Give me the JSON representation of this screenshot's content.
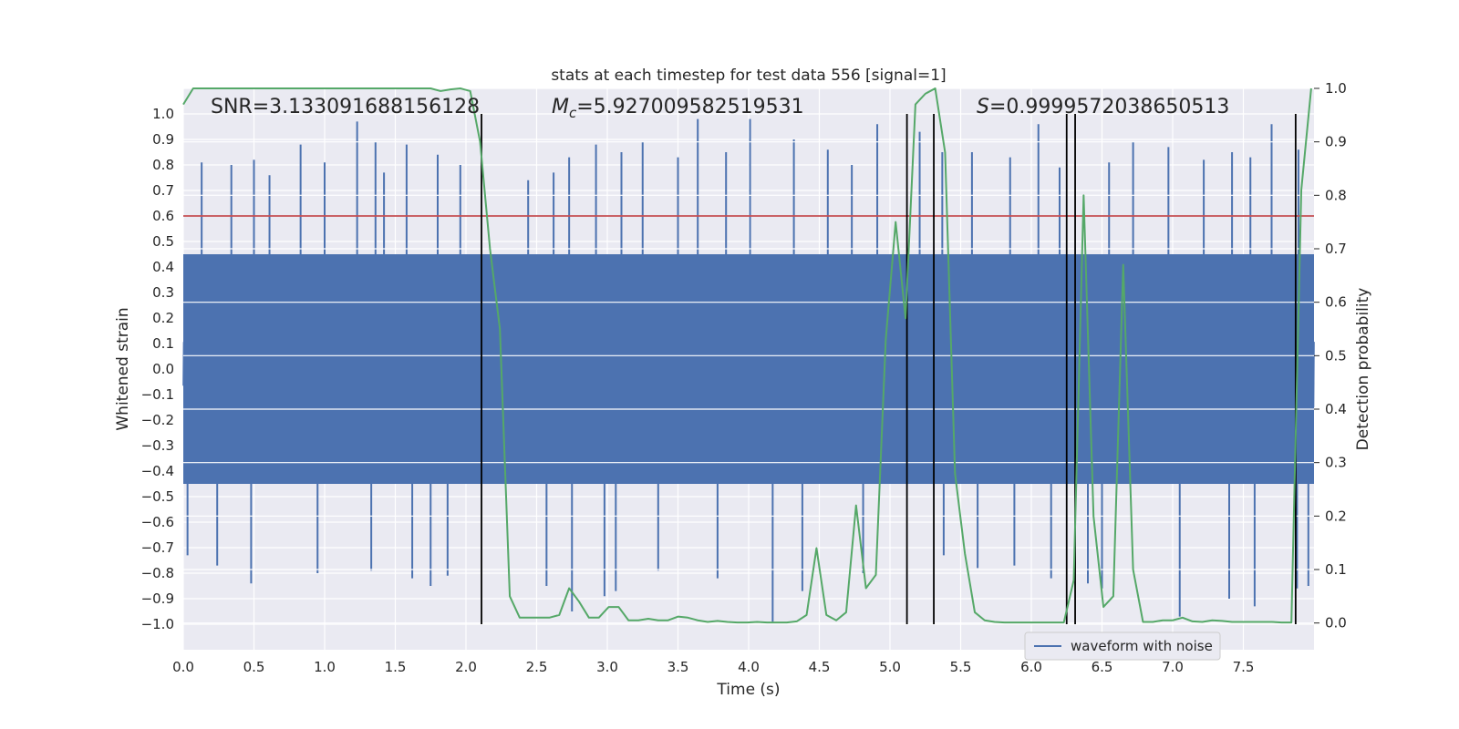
{
  "chart_data": {
    "type": "line",
    "title": "stats at each timestep for test data 556 [signal=1]",
    "xlabel": "Time (s)",
    "ylabel_left": "Whitened strain",
    "ylabel_right": "Detection probability",
    "xlim": [
      0,
      8.0
    ],
    "ylim_left": [
      -1.1,
      1.1
    ],
    "ylim_right": [
      -0.05,
      1.0
    ],
    "x_ticks": [
      0.0,
      0.5,
      1.0,
      1.5,
      2.0,
      2.5,
      3.0,
      3.5,
      4.0,
      4.5,
      5.0,
      5.5,
      6.0,
      6.5,
      7.0,
      7.5
    ],
    "x_tick_labels": [
      "0.0",
      "0.5",
      "1.0",
      "1.5",
      "2.0",
      "2.5",
      "3.0",
      "3.5",
      "4.0",
      "4.5",
      "5.0",
      "5.5",
      "6.0",
      "6.5",
      "7.0",
      "7.5"
    ],
    "y_left_ticks": [
      1.0,
      0.9,
      0.8,
      0.7,
      0.6,
      0.5,
      0.4,
      0.3,
      0.2,
      0.1,
      0.0,
      -0.1,
      -0.2,
      -0.3,
      -0.4,
      -0.5,
      -0.6,
      -0.7,
      -0.8,
      -0.9,
      -1.0
    ],
    "y_left_tick_labels": [
      "1.0",
      "0.9",
      "0.8",
      "0.7",
      "0.6",
      "0.5",
      "0.4",
      "0.3",
      "0.2",
      "0.1",
      "0.0",
      "−0.1",
      "−0.2",
      "−0.3",
      "−0.4",
      "−0.5",
      "−0.6",
      "−0.7",
      "−0.8",
      "−0.9",
      "−1.0"
    ],
    "y_right_ticks": [
      1.0,
      0.9,
      0.8,
      0.7,
      0.6,
      0.5,
      0.4,
      0.3,
      0.2,
      0.1,
      0.0
    ],
    "y_right_tick_labels": [
      "1.0",
      "0.9",
      "0.8",
      "0.7",
      "0.6",
      "0.5",
      "0.4",
      "0.3",
      "0.2",
      "0.1",
      "0.0"
    ],
    "annotations": {
      "snr": "SNR=3.133091688156128",
      "mc_symbol": "M",
      "mc_sub": "c",
      "mc_value": "=5.927009582519531",
      "s_symbol": "S",
      "s_value": "=0.9999572038650513"
    },
    "threshold": {
      "value": 0.6,
      "axis": "left",
      "color": "#c44e52"
    },
    "vertical_lines": [
      2.11,
      5.12,
      5.31,
      6.25,
      6.31,
      7.87
    ],
    "vertical_line_range": [
      -1.0,
      1.0
    ],
    "legend": {
      "label": "waveform with noise",
      "placement": "lower-right"
    },
    "colors": {
      "waveform": "#4c72b0",
      "probability": "#55a868",
      "threshold": "#c44e52",
      "vlines": "#000000",
      "background": "#eaeaf2",
      "grid": "#ffffff"
    },
    "series": [
      {
        "name": "waveform with noise",
        "axis": "left",
        "style": "dense-noise",
        "envelope_typical": [
          -0.45,
          0.45
        ],
        "peaks_up": [
          {
            "x": 0.13,
            "y": 0.81
          },
          {
            "x": 0.34,
            "y": 0.8
          },
          {
            "x": 0.5,
            "y": 0.82
          },
          {
            "x": 0.61,
            "y": 0.76
          },
          {
            "x": 0.83,
            "y": 0.88
          },
          {
            "x": 1.0,
            "y": 0.81
          },
          {
            "x": 1.23,
            "y": 0.97
          },
          {
            "x": 1.36,
            "y": 0.89
          },
          {
            "x": 1.42,
            "y": 0.77
          },
          {
            "x": 1.58,
            "y": 0.88
          },
          {
            "x": 1.8,
            "y": 0.84
          },
          {
            "x": 1.96,
            "y": 0.8
          },
          {
            "x": 2.44,
            "y": 0.74
          },
          {
            "x": 2.62,
            "y": 0.77
          },
          {
            "x": 2.73,
            "y": 0.83
          },
          {
            "x": 2.92,
            "y": 0.88
          },
          {
            "x": 3.1,
            "y": 0.85
          },
          {
            "x": 3.25,
            "y": 0.89
          },
          {
            "x": 3.5,
            "y": 0.83
          },
          {
            "x": 3.64,
            "y": 0.98
          },
          {
            "x": 3.84,
            "y": 0.85
          },
          {
            "x": 4.01,
            "y": 0.98
          },
          {
            "x": 4.32,
            "y": 0.9
          },
          {
            "x": 4.56,
            "y": 0.86
          },
          {
            "x": 4.73,
            "y": 0.8
          },
          {
            "x": 4.91,
            "y": 0.96
          },
          {
            "x": 5.21,
            "y": 0.93
          },
          {
            "x": 5.37,
            "y": 0.85
          },
          {
            "x": 5.58,
            "y": 0.85
          },
          {
            "x": 5.85,
            "y": 0.83
          },
          {
            "x": 6.05,
            "y": 0.96
          },
          {
            "x": 6.2,
            "y": 0.79
          },
          {
            "x": 6.55,
            "y": 0.81
          },
          {
            "x": 6.72,
            "y": 0.89
          },
          {
            "x": 6.97,
            "y": 0.87
          },
          {
            "x": 7.22,
            "y": 0.82
          },
          {
            "x": 7.42,
            "y": 0.85
          },
          {
            "x": 7.55,
            "y": 0.83
          },
          {
            "x": 7.7,
            "y": 0.96
          },
          {
            "x": 7.89,
            "y": 0.86
          }
        ],
        "peaks_down": [
          {
            "x": 0.03,
            "y": -0.73
          },
          {
            "x": 0.24,
            "y": -0.77
          },
          {
            "x": 0.48,
            "y": -0.84
          },
          {
            "x": 0.95,
            "y": -0.8
          },
          {
            "x": 1.33,
            "y": -0.79
          },
          {
            "x": 1.62,
            "y": -0.82
          },
          {
            "x": 1.75,
            "y": -0.85
          },
          {
            "x": 1.87,
            "y": -0.81
          },
          {
            "x": 2.57,
            "y": -0.85
          },
          {
            "x": 2.75,
            "y": -0.95
          },
          {
            "x": 2.98,
            "y": -0.89
          },
          {
            "x": 3.06,
            "y": -0.87
          },
          {
            "x": 3.36,
            "y": -0.79
          },
          {
            "x": 3.78,
            "y": -0.82
          },
          {
            "x": 4.17,
            "y": -0.99
          },
          {
            "x": 4.38,
            "y": -0.87
          },
          {
            "x": 4.81,
            "y": -0.8
          },
          {
            "x": 5.38,
            "y": -0.73
          },
          {
            "x": 5.62,
            "y": -0.78
          },
          {
            "x": 5.88,
            "y": -0.77
          },
          {
            "x": 6.14,
            "y": -0.82
          },
          {
            "x": 6.4,
            "y": -0.84
          },
          {
            "x": 6.5,
            "y": -0.86
          },
          {
            "x": 7.05,
            "y": -0.97
          },
          {
            "x": 7.4,
            "y": -0.9
          },
          {
            "x": 7.58,
            "y": -0.93
          },
          {
            "x": 7.88,
            "y": -0.86
          },
          {
            "x": 7.96,
            "y": -0.85
          }
        ]
      },
      {
        "name": "detection probability",
        "axis": "right",
        "x": [
          0.0,
          0.07,
          0.14,
          0.21,
          0.28,
          0.35,
          0.42,
          0.49,
          0.56,
          0.63,
          0.7,
          0.77,
          0.84,
          0.91,
          0.98,
          1.05,
          1.12,
          1.19,
          1.26,
          1.33,
          1.4,
          1.47,
          1.54,
          1.61,
          1.68,
          1.75,
          1.82,
          1.89,
          1.96,
          2.03,
          2.1,
          2.17,
          2.24,
          2.31,
          2.38,
          2.45,
          2.52,
          2.59,
          2.66,
          2.73,
          2.8,
          2.87,
          2.94,
          3.01,
          3.08,
          3.15,
          3.22,
          3.29,
          3.36,
          3.43,
          3.5,
          3.57,
          3.64,
          3.71,
          3.78,
          3.85,
          3.92,
          3.99,
          4.06,
          4.13,
          4.2,
          4.27,
          4.34,
          4.41,
          4.48,
          4.55,
          4.62,
          4.69,
          4.76,
          4.83,
          4.9,
          4.97,
          5.04,
          5.11,
          5.18,
          5.25,
          5.32,
          5.39,
          5.46,
          5.53,
          5.6,
          5.67,
          5.74,
          5.81,
          5.88,
          5.95,
          6.02,
          6.09,
          6.16,
          6.23,
          6.3,
          6.37,
          6.44,
          6.51,
          6.58,
          6.65,
          6.72,
          6.79,
          6.86,
          6.93,
          7.0,
          7.07,
          7.14,
          7.21,
          7.28,
          7.35,
          7.42,
          7.49,
          7.56,
          7.63,
          7.7,
          7.77,
          7.84,
          7.91,
          7.98
        ],
        "y": [
          0.97,
          1.0,
          1.0,
          1.0,
          1.0,
          1.0,
          1.0,
          1.0,
          1.0,
          1.0,
          1.0,
          1.0,
          1.0,
          1.0,
          1.0,
          1.0,
          1.0,
          1.0,
          1.0,
          1.0,
          1.0,
          1.0,
          1.0,
          1.0,
          1.0,
          1.0,
          0.995,
          0.998,
          1.0,
          0.995,
          0.9,
          0.7,
          0.55,
          0.05,
          0.01,
          0.01,
          0.01,
          0.01,
          0.015,
          0.065,
          0.04,
          0.01,
          0.01,
          0.03,
          0.03,
          0.005,
          0.005,
          0.008,
          0.005,
          0.005,
          0.012,
          0.01,
          0.005,
          0.002,
          0.004,
          0.002,
          0.001,
          0.001,
          0.002,
          0.001,
          0.001,
          0.001,
          0.003,
          0.015,
          0.14,
          0.015,
          0.005,
          0.02,
          0.22,
          0.065,
          0.09,
          0.53,
          0.75,
          0.57,
          0.97,
          0.99,
          1.0,
          0.88,
          0.28,
          0.13,
          0.02,
          0.005,
          0.002,
          0.001,
          0.001,
          0.001,
          0.001,
          0.001,
          0.001,
          0.001,
          0.08,
          0.8,
          0.2,
          0.03,
          0.05,
          0.67,
          0.1,
          0.002,
          0.002,
          0.005,
          0.005,
          0.01,
          0.003,
          0.002,
          0.005,
          0.004,
          0.002,
          0.002,
          0.002,
          0.002,
          0.002,
          0.001,
          0.001,
          0.81,
          1.0
        ]
      }
    ]
  }
}
